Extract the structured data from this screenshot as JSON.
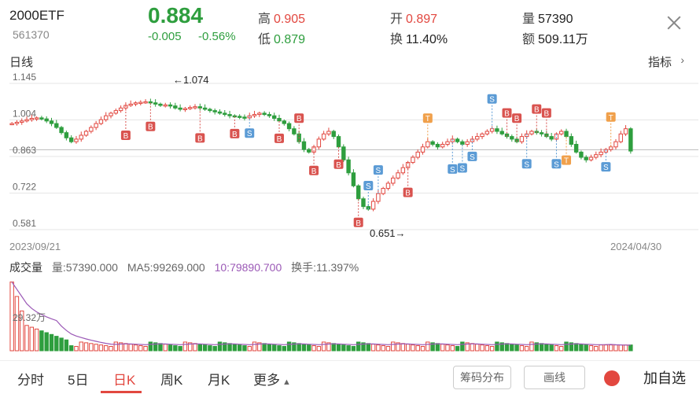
{
  "header": {
    "name": "2000ETF",
    "code": "561370",
    "price": "0.884",
    "change": "-0.005",
    "change_pct": "-0.56%",
    "high_label": "高",
    "high": "0.905",
    "low_label": "低",
    "low": "0.879",
    "open_label": "开",
    "open": "0.897",
    "turnover_label": "换",
    "turnover": "11.40%",
    "volume_label": "量",
    "volume": "57390",
    "amount_label": "额",
    "amount": "509.11万"
  },
  "chart": {
    "section_label": "日线",
    "indicator_label": "指标",
    "indicator_icon": "chevron-right-icon",
    "start_date": "2023/09/21",
    "end_date": "2024/04/30",
    "y_ticks": [
      "1.145",
      "1.004",
      "0.863",
      "0.722",
      "0.581"
    ],
    "high_marker": "←1.074",
    "low_marker": "0.651→"
  },
  "volume": {
    "title": "成交量",
    "vol": "量:57390.000",
    "ma5": "MA5:99269.000",
    "ma10": "10:79890.700",
    "turnover": "换手:11.397%",
    "axis_label": "29.32万"
  },
  "tabs": [
    "分时",
    "5日",
    "日K",
    "周K",
    "月K",
    "更多"
  ],
  "active_tab": "日K",
  "buttons": {
    "chips": "筹码分布",
    "draw": "画线",
    "add": "加自选"
  },
  "colors": {
    "up": "#e2473f",
    "down": "#2e9e3e",
    "buy": "#d9534f",
    "sell": "#5b9bd5",
    "take": "#f0a04b",
    "ma": "#9b59b6"
  },
  "chart_data": {
    "type": "candlestick",
    "ylim": [
      0.581,
      1.145
    ],
    "close_series": [
      0.99,
      0.995,
      1.0,
      1.005,
      1.01,
      1.012,
      1.008,
      1.0,
      0.99,
      0.975,
      0.955,
      0.935,
      0.92,
      0.93,
      0.945,
      0.96,
      0.975,
      0.99,
      1.005,
      1.02,
      1.03,
      1.04,
      1.05,
      1.06,
      1.065,
      1.07,
      1.072,
      1.074,
      1.07,
      1.065,
      1.06,
      1.062,
      1.058,
      1.05,
      1.045,
      1.048,
      1.052,
      1.055,
      1.05,
      1.045,
      1.04,
      1.035,
      1.03,
      1.025,
      1.02,
      1.018,
      1.015,
      1.012,
      1.02,
      1.025,
      1.03,
      1.025,
      1.02,
      1.01,
      1.0,
      0.99,
      0.97,
      0.95,
      0.92,
      0.89,
      0.88,
      0.9,
      0.93,
      0.95,
      0.96,
      0.94,
      0.9,
      0.85,
      0.8,
      0.75,
      0.7,
      0.67,
      0.66,
      0.69,
      0.72,
      0.74,
      0.76,
      0.78,
      0.8,
      0.82,
      0.84,
      0.86,
      0.88,
      0.9,
      0.92,
      0.91,
      0.9,
      0.91,
      0.92,
      0.93,
      0.92,
      0.91,
      0.92,
      0.93,
      0.94,
      0.95,
      0.96,
      0.97,
      0.96,
      0.95,
      0.94,
      0.93,
      0.92,
      0.94,
      0.95,
      0.96,
      0.955,
      0.95,
      0.94,
      0.93,
      0.95,
      0.96,
      0.94,
      0.91,
      0.88,
      0.86,
      0.85,
      0.86,
      0.87,
      0.88,
      0.89,
      0.9,
      0.92,
      0.95,
      0.97,
      0.884
    ]
  }
}
